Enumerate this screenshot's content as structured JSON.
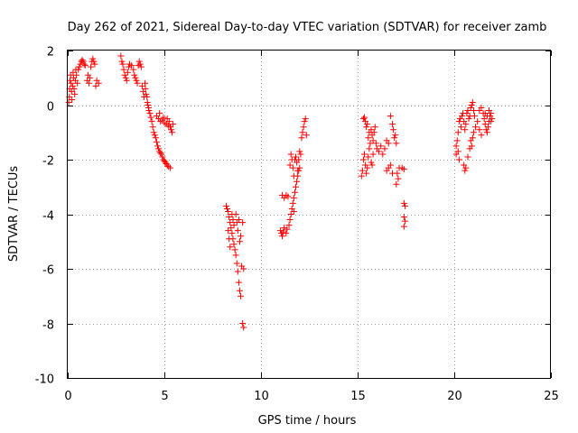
{
  "chart_data": {
    "type": "scatter",
    "title": "Day 262 of 2021, Sidereal Day-to-day VTEC variation (SDTVAR) for receiver zamb",
    "xlabel": "GPS time / hours",
    "ylabel": "SDTVAR / TECUs",
    "xlim": [
      0,
      25
    ],
    "ylim": [
      -10,
      2
    ],
    "xticks": [
      0,
      5,
      10,
      15,
      20,
      25
    ],
    "yticks": [
      2,
      0,
      -2,
      -4,
      -6,
      -8,
      -10
    ],
    "grid": true,
    "marker": "plus",
    "color": "#ff0000",
    "series": [
      {
        "name": "SDTVAR",
        "points": [
          [
            0.05,
            0.1
          ],
          [
            0.08,
            0.3
          ],
          [
            0.1,
            0.6
          ],
          [
            0.12,
            0.9
          ],
          [
            0.15,
            1.1
          ],
          [
            0.18,
            0.8
          ],
          [
            0.2,
            0.5
          ],
          [
            0.22,
            0.2
          ],
          [
            0.25,
            0.7
          ],
          [
            0.28,
            1.2
          ],
          [
            0.3,
            1.0
          ],
          [
            0.33,
            0.6
          ],
          [
            0.36,
            0.4
          ],
          [
            0.4,
            0.9
          ],
          [
            0.42,
            1.3
          ],
          [
            0.45,
            1.1
          ],
          [
            0.5,
            0.8
          ],
          [
            0.55,
            1.3
          ],
          [
            0.6,
            1.4
          ],
          [
            0.65,
            1.5
          ],
          [
            0.7,
            1.6
          ],
          [
            0.75,
            1.65
          ],
          [
            0.8,
            1.6
          ],
          [
            0.85,
            1.5
          ],
          [
            0.9,
            1.45
          ],
          [
            1.0,
            0.9
          ],
          [
            1.05,
            1.1
          ],
          [
            1.1,
            0.8
          ],
          [
            1.15,
            1.0
          ],
          [
            1.2,
            1.4
          ],
          [
            1.25,
            1.6
          ],
          [
            1.3,
            1.7
          ],
          [
            1.35,
            1.6
          ],
          [
            1.4,
            1.5
          ],
          [
            1.45,
            0.7
          ],
          [
            1.5,
            0.9
          ],
          [
            1.6,
            0.8
          ],
          [
            2.75,
            1.8
          ],
          [
            2.8,
            1.6
          ],
          [
            2.85,
            1.5
          ],
          [
            2.9,
            1.3
          ],
          [
            2.95,
            1.1
          ],
          [
            3.0,
            1.0
          ],
          [
            3.05,
            0.9
          ],
          [
            3.1,
            1.2
          ],
          [
            3.15,
            1.4
          ],
          [
            3.2,
            1.5
          ],
          [
            3.3,
            1.45
          ],
          [
            3.4,
            1.3
          ],
          [
            3.45,
            1.1
          ],
          [
            3.5,
            1.0
          ],
          [
            3.55,
            0.9
          ],
          [
            3.6,
            0.8
          ],
          [
            3.65,
            1.45
          ],
          [
            3.7,
            1.6
          ],
          [
            3.75,
            1.5
          ],
          [
            3.8,
            1.4
          ],
          [
            3.85,
            0.7
          ],
          [
            3.9,
            0.5
          ],
          [
            3.95,
            0.3
          ],
          [
            4.0,
            0.8
          ],
          [
            4.02,
            0.6
          ],
          [
            4.05,
            0.4
          ],
          [
            4.1,
            0.3
          ],
          [
            4.12,
            0.1
          ],
          [
            4.15,
            0.0
          ],
          [
            4.18,
            -0.1
          ],
          [
            4.2,
            -0.2
          ],
          [
            4.25,
            -0.3
          ],
          [
            4.3,
            -0.45
          ],
          [
            4.35,
            -0.6
          ],
          [
            4.4,
            -0.8
          ],
          [
            4.45,
            -1.0
          ],
          [
            4.5,
            -1.1
          ],
          [
            4.55,
            -1.2
          ],
          [
            4.6,
            -1.35
          ],
          [
            4.65,
            -1.5
          ],
          [
            4.7,
            -1.6
          ],
          [
            4.75,
            -1.7
          ],
          [
            4.8,
            -1.75
          ],
          [
            4.85,
            -1.8
          ],
          [
            4.9,
            -1.9
          ],
          [
            4.95,
            -2.0
          ],
          [
            5.0,
            -2.05
          ],
          [
            5.05,
            -2.1
          ],
          [
            5.1,
            -2.15
          ],
          [
            5.15,
            -2.2
          ],
          [
            5.2,
            -2.25
          ],
          [
            5.3,
            -2.3
          ],
          [
            4.6,
            -0.4
          ],
          [
            4.7,
            -0.5
          ],
          [
            4.8,
            -0.6
          ],
          [
            4.9,
            -0.55
          ],
          [
            5.0,
            -0.65
          ],
          [
            5.1,
            -0.7
          ],
          [
            5.2,
            -0.75
          ],
          [
            5.3,
            -0.8
          ],
          [
            5.35,
            -0.9
          ],
          [
            5.4,
            -1.0
          ],
          [
            5.45,
            -0.7
          ],
          [
            4.75,
            -0.3
          ],
          [
            4.95,
            -0.45
          ],
          [
            5.15,
            -0.5
          ],
          [
            5.25,
            -0.6
          ],
          [
            8.2,
            -3.7
          ],
          [
            8.25,
            -3.8
          ],
          [
            8.3,
            -3.9
          ],
          [
            8.35,
            -4.1
          ],
          [
            8.4,
            -4.3
          ],
          [
            8.45,
            -4.5
          ],
          [
            8.5,
            -4.7
          ],
          [
            8.55,
            -4.9
          ],
          [
            8.6,
            -5.1
          ],
          [
            8.65,
            -5.3
          ],
          [
            8.7,
            -5.5
          ],
          [
            8.75,
            -5.8
          ],
          [
            8.8,
            -6.1
          ],
          [
            8.85,
            -6.5
          ],
          [
            8.9,
            -6.8
          ],
          [
            8.95,
            -7.0
          ],
          [
            8.3,
            -4.6
          ],
          [
            8.35,
            -4.9
          ],
          [
            8.4,
            -5.2
          ],
          [
            8.5,
            -4.0
          ],
          [
            8.55,
            -4.2
          ],
          [
            8.6,
            -4.4
          ],
          [
            8.7,
            -4.0
          ],
          [
            8.75,
            -4.3
          ],
          [
            8.8,
            -4.6
          ],
          [
            8.85,
            -4.2
          ],
          [
            8.9,
            -5.0
          ],
          [
            8.95,
            -4.8
          ],
          [
            9.0,
            -5.9
          ],
          [
            9.05,
            -4.3
          ],
          [
            9.1,
            -6.0
          ],
          [
            9.05,
            -8.0
          ],
          [
            9.1,
            -8.15
          ],
          [
            11.0,
            -4.6
          ],
          [
            11.05,
            -4.7
          ],
          [
            11.1,
            -4.8
          ],
          [
            11.15,
            -4.65
          ],
          [
            11.2,
            -4.5
          ],
          [
            11.3,
            -4.7
          ],
          [
            11.35,
            -4.55
          ],
          [
            11.1,
            -3.3
          ],
          [
            11.2,
            -3.4
          ],
          [
            11.3,
            -3.3
          ],
          [
            11.4,
            -3.35
          ],
          [
            11.45,
            -4.4
          ],
          [
            11.5,
            -4.2
          ],
          [
            11.55,
            -4.0
          ],
          [
            11.6,
            -3.8
          ],
          [
            11.65,
            -3.6
          ],
          [
            11.7,
            -3.4
          ],
          [
            11.75,
            -3.2
          ],
          [
            11.8,
            -3.0
          ],
          [
            11.85,
            -2.8
          ],
          [
            11.9,
            -2.6
          ],
          [
            11.95,
            -2.4
          ],
          [
            11.5,
            -2.2
          ],
          [
            11.55,
            -1.8
          ],
          [
            11.6,
            -2.0
          ],
          [
            11.65,
            -2.3
          ],
          [
            11.7,
            -2.6
          ],
          [
            11.75,
            -2.0
          ],
          [
            11.8,
            -1.9
          ],
          [
            11.85,
            -2.1
          ],
          [
            11.9,
            -2.4
          ],
          [
            11.95,
            -2.0
          ],
          [
            12.0,
            -1.7
          ],
          [
            12.05,
            -1.8
          ],
          [
            12.1,
            -1.2
          ],
          [
            12.15,
            -1.0
          ],
          [
            12.2,
            -0.8
          ],
          [
            12.25,
            -0.6
          ],
          [
            12.3,
            -0.5
          ],
          [
            12.35,
            -1.1
          ],
          [
            12.0,
            -2.3
          ],
          [
            11.7,
            -3.9
          ],
          [
            15.2,
            -2.6
          ],
          [
            15.25,
            -2.4
          ],
          [
            15.3,
            -2.0
          ],
          [
            15.35,
            -1.8
          ],
          [
            15.4,
            -2.2
          ],
          [
            15.45,
            -2.5
          ],
          [
            15.5,
            -2.3
          ],
          [
            15.55,
            -1.9
          ],
          [
            15.6,
            -1.6
          ],
          [
            15.65,
            -1.4
          ],
          [
            15.7,
            -2.1
          ],
          [
            15.75,
            -2.2
          ],
          [
            15.8,
            -1.8
          ],
          [
            15.3,
            -0.5
          ],
          [
            15.35,
            -0.45
          ],
          [
            15.4,
            -0.6
          ],
          [
            15.45,
            -0.8
          ],
          [
            15.5,
            -0.7
          ],
          [
            15.55,
            -1.2
          ],
          [
            15.6,
            -1.0
          ],
          [
            15.7,
            -0.9
          ],
          [
            15.75,
            -1.1
          ],
          [
            15.8,
            -1.3
          ],
          [
            15.85,
            -1.0
          ],
          [
            15.9,
            -0.8
          ],
          [
            15.95,
            -1.4
          ],
          [
            16.0,
            -1.6
          ],
          [
            16.1,
            -1.7
          ],
          [
            16.2,
            -1.5
          ],
          [
            16.3,
            -1.8
          ],
          [
            16.4,
            -1.6
          ],
          [
            16.5,
            -2.4
          ],
          [
            16.6,
            -2.3
          ],
          [
            16.7,
            -2.2
          ],
          [
            16.8,
            -2.5
          ],
          [
            16.5,
            -1.3
          ],
          [
            16.6,
            -1.4
          ],
          [
            16.7,
            -0.4
          ],
          [
            16.8,
            -0.7
          ],
          [
            16.85,
            -0.9
          ],
          [
            16.9,
            -1.2
          ],
          [
            16.95,
            -1.1
          ],
          [
            17.0,
            -1.4
          ],
          [
            17.05,
            -2.5
          ],
          [
            17.1,
            -2.7
          ],
          [
            17.0,
            -2.9
          ],
          [
            17.15,
            -2.3
          ],
          [
            17.3,
            -2.3
          ],
          [
            17.4,
            -2.35
          ],
          [
            17.4,
            -3.6
          ],
          [
            17.45,
            -3.7
          ],
          [
            17.4,
            -4.1
          ],
          [
            17.45,
            -4.25
          ],
          [
            17.4,
            -4.45
          ],
          [
            20.1,
            -1.5
          ],
          [
            20.15,
            -1.3
          ],
          [
            20.2,
            -1.0
          ],
          [
            20.25,
            -0.6
          ],
          [
            20.3,
            -0.5
          ],
          [
            20.35,
            -0.8
          ],
          [
            20.4,
            -0.4
          ],
          [
            20.45,
            -0.3
          ],
          [
            20.5,
            -0.6
          ],
          [
            20.55,
            -0.9
          ],
          [
            20.6,
            -0.7
          ],
          [
            20.65,
            -0.3
          ],
          [
            20.7,
            -0.2
          ],
          [
            20.75,
            -0.5
          ],
          [
            20.8,
            -0.4
          ],
          [
            20.85,
            -0.1
          ],
          [
            20.9,
            0.0
          ],
          [
            20.95,
            0.1
          ],
          [
            21.0,
            -0.2
          ],
          [
            21.05,
            -0.4
          ],
          [
            20.1,
            -1.8
          ],
          [
            20.2,
            -1.7
          ],
          [
            20.25,
            -2.0
          ],
          [
            20.5,
            -2.2
          ],
          [
            20.55,
            -2.4
          ],
          [
            20.6,
            -2.3
          ],
          [
            20.7,
            -1.9
          ],
          [
            20.8,
            -1.6
          ],
          [
            20.85,
            -1.3
          ],
          [
            20.9,
            -1.5
          ],
          [
            20.95,
            -1.2
          ],
          [
            21.0,
            -1.0
          ],
          [
            21.1,
            -0.8
          ],
          [
            21.2,
            -0.6
          ],
          [
            21.3,
            -0.9
          ],
          [
            21.4,
            -1.1
          ],
          [
            21.3,
            -0.2
          ],
          [
            21.4,
            -0.1
          ],
          [
            21.5,
            -0.3
          ],
          [
            21.55,
            -0.5
          ],
          [
            21.6,
            -0.7
          ],
          [
            21.65,
            -0.9
          ],
          [
            21.7,
            -1.0
          ],
          [
            21.75,
            -0.8
          ],
          [
            21.8,
            -0.6
          ],
          [
            21.85,
            -0.4
          ],
          [
            21.9,
            -0.3
          ],
          [
            21.95,
            -0.5
          ],
          [
            21.6,
            -0.3
          ],
          [
            21.7,
            -0.4
          ],
          [
            21.8,
            -0.2
          ],
          [
            21.9,
            -0.6
          ]
        ]
      }
    ]
  }
}
